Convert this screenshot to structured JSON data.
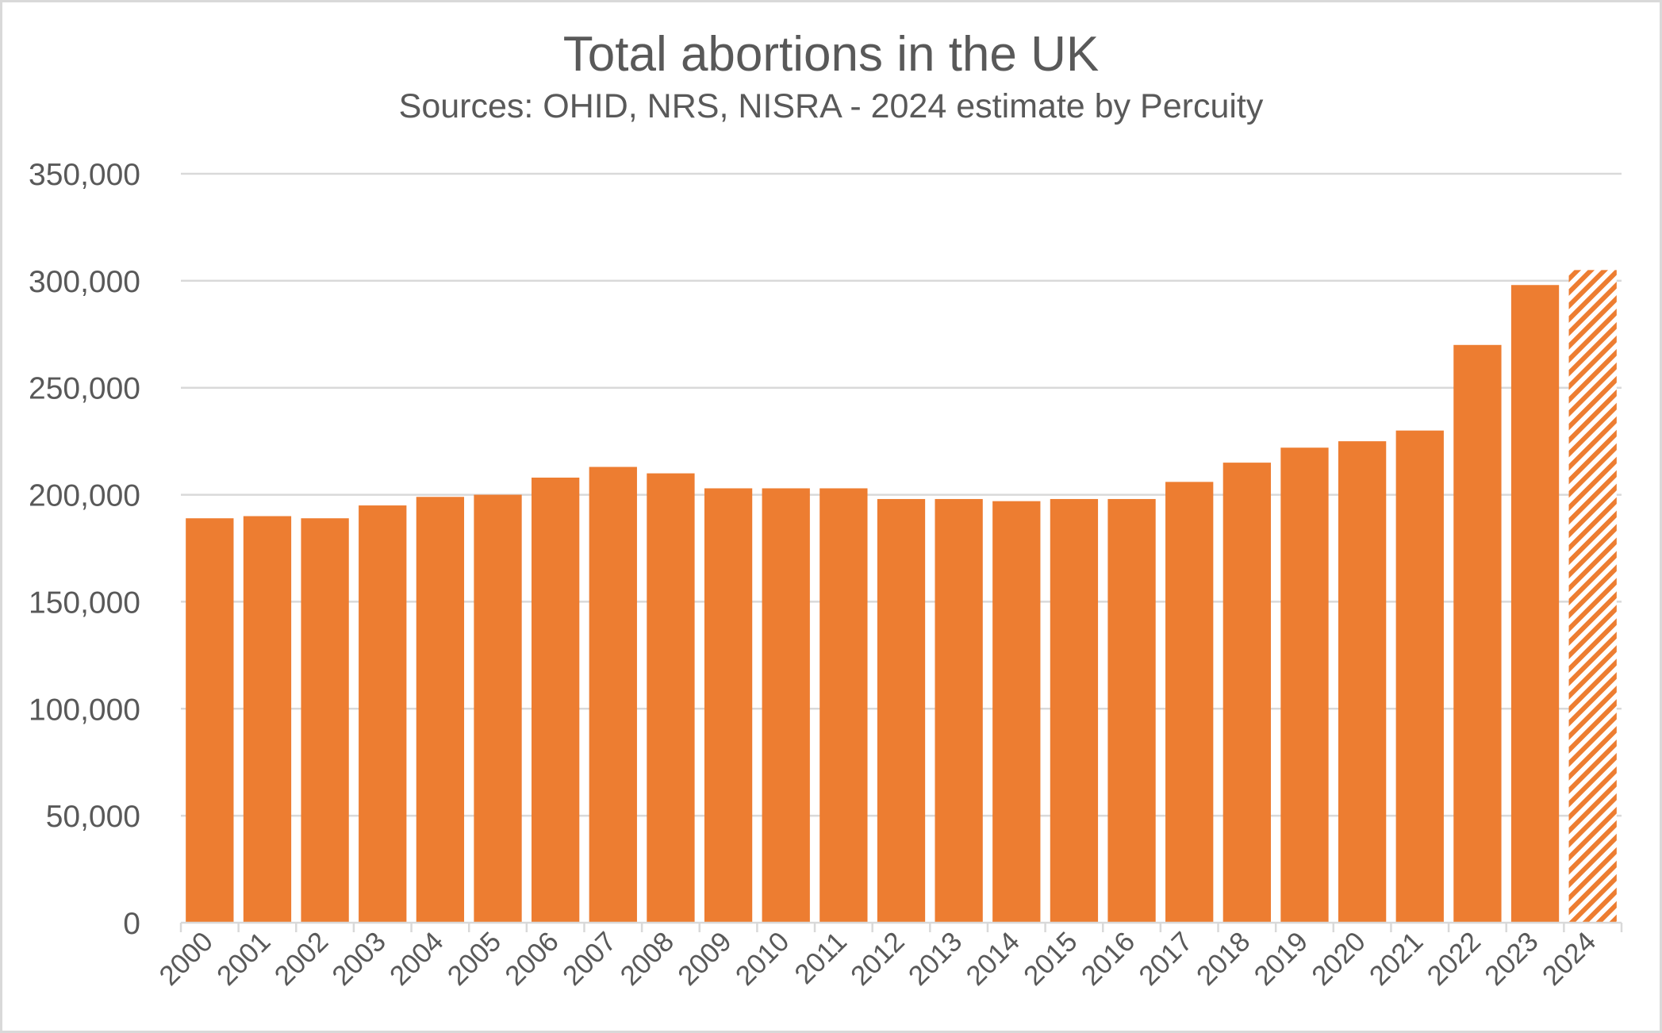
{
  "chart_data": {
    "type": "bar",
    "title": "Total abortions in the UK",
    "subtitle": "Sources: OHID, NRS, NISRA - 2024 estimate by Percuity",
    "xlabel": "",
    "ylabel": "",
    "ylim": [
      0,
      350000
    ],
    "yticks": [
      0,
      50000,
      100000,
      150000,
      200000,
      250000,
      300000,
      350000
    ],
    "ytick_labels": [
      "0",
      "50,000",
      "100,000",
      "150,000",
      "200,000",
      "250,000",
      "300,000",
      "350,000"
    ],
    "grid": true,
    "legend": "none",
    "categories": [
      "2000",
      "2001",
      "2002",
      "2003",
      "2004",
      "2005",
      "2006",
      "2007",
      "2008",
      "2009",
      "2010",
      "2011",
      "2012",
      "2013",
      "2014",
      "2015",
      "2016",
      "2017",
      "2018",
      "2019",
      "2020",
      "2021",
      "2022",
      "2023",
      "2024"
    ],
    "series": [
      {
        "name": "Total abortions",
        "values": [
          189000,
          190000,
          189000,
          195000,
          199000,
          200000,
          208000,
          213000,
          210000,
          203000,
          203000,
          203000,
          198000,
          198000,
          197000,
          198000,
          198000,
          206000,
          215000,
          222000,
          225000,
          230000,
          270000,
          298000,
          305000
        ],
        "estimated": [
          false,
          false,
          false,
          false,
          false,
          false,
          false,
          false,
          false,
          false,
          false,
          false,
          false,
          false,
          false,
          false,
          false,
          false,
          false,
          false,
          false,
          false,
          false,
          false,
          true
        ]
      }
    ],
    "annotations": [
      "2024 bar shown hatched as an estimate"
    ]
  },
  "colors": {
    "bar": "#ed7d31",
    "text": "#595959",
    "grid": "#d9d9d9",
    "axis": "#d9d9d9",
    "frame": "#d9d9d9",
    "background": "#ffffff"
  }
}
